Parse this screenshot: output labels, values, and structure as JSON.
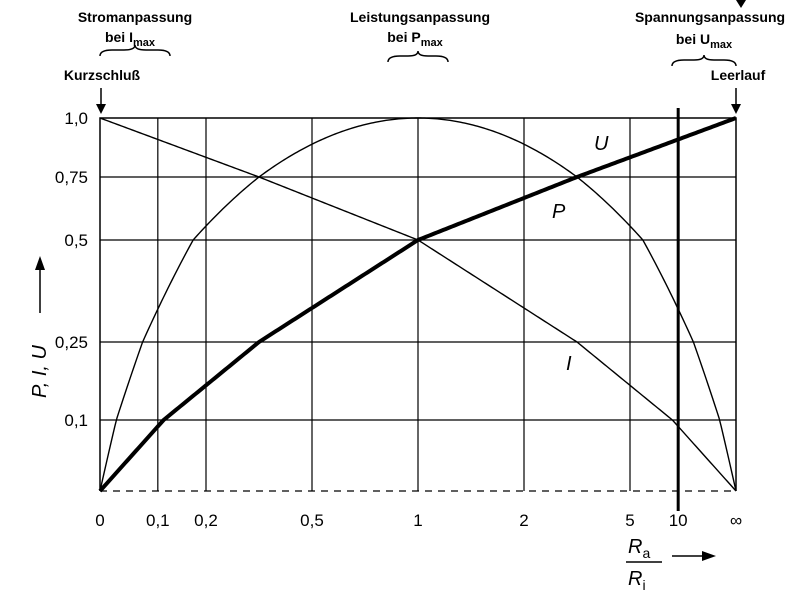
{
  "chart_data": {
    "type": "line",
    "annotations": {
      "current_match": {
        "line1": "Stromanpassung",
        "line2": "bei I",
        "sub": "max"
      },
      "power_match": {
        "line1": "Leistungsanpassung",
        "line2": "bei P",
        "sub": "max"
      },
      "voltage_match": {
        "line1": "Spannungsanpassung",
        "line2": "bei U",
        "sub": "max"
      },
      "short_circuit": "Kurzschluß",
      "open_circuit": "Leerlauf"
    },
    "ylabel": "P, I, U",
    "xlabel": {
      "numerator": "R",
      "numerator_sub": "a",
      "denominator": "R",
      "denominator_sub": "i"
    },
    "x_ticks": [
      "0",
      "0,1",
      "0,2",
      "0,5",
      "1",
      "2",
      "5",
      "10",
      "∞"
    ],
    "y_ticks": [
      "0,1",
      "0,25",
      "0,5",
      "0,75",
      "1,0"
    ],
    "x_tick_values": [
      0,
      0.1,
      0.2,
      0.5,
      1,
      2,
      5,
      10,
      "inf"
    ],
    "y_tick_values": [
      0.1,
      0.25,
      0.5,
      0.75,
      1.0
    ],
    "x_scale": "m/(1+m), m = R_a/R_i",
    "y_scale": "non-linear (0 at bottom, 1 at top)",
    "marked_x": 10,
    "series": [
      {
        "name": "U",
        "formula": "U = m/(1+m)",
        "style": "thick"
      },
      {
        "name": "P",
        "formula": "P = 4m/(1+m)^2",
        "style": "thin"
      },
      {
        "name": "I",
        "formula": "I = 1/(1+m)",
        "style": "thin"
      }
    ],
    "grid": true
  }
}
